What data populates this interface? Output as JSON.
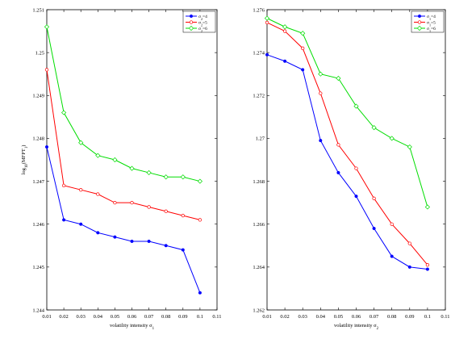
{
  "chart_data": [
    {
      "type": "line",
      "title": "",
      "xlabel": "volatility intensity σ",
      "xlabel_sub": "1",
      "ylabel": "log",
      "ylabel_sub": "10",
      "ylabel_tail": "(MFPT",
      "ylabel_tail_sub": "1",
      "ylabel_end": ")",
      "xlim": [
        0.01,
        0.11
      ],
      "ylim": [
        1.244,
        1.251
      ],
      "xticks": [
        "0.01",
        "0.02",
        "0.03",
        "0.04",
        "0.05",
        "0.06",
        "0.07",
        "0.08",
        "0.09",
        "0.1",
        "0.11"
      ],
      "yticks": [
        "1.244",
        "1.245",
        "1.246",
        "1.247",
        "1.248",
        "1.249",
        "1.25",
        "1.251"
      ],
      "x": [
        0.01,
        0.02,
        0.03,
        0.04,
        0.05,
        0.06,
        0.07,
        0.08,
        0.09,
        0.1
      ],
      "grid": false,
      "legend_position": "top-right",
      "series": [
        {
          "name": "σ",
          "name_sub": "2",
          "name_tail": "=4",
          "color": "#0000ff",
          "marker": "dot",
          "values": [
            1.2478,
            1.2461,
            1.246,
            1.2458,
            1.2457,
            1.2456,
            1.2456,
            1.2455,
            1.2454,
            1.2444
          ]
        },
        {
          "name": "σ",
          "name_sub": "2",
          "name_tail": "=5",
          "color": "#ff0000",
          "marker": "circle",
          "values": [
            1.2496,
            1.2469,
            1.2468,
            1.2467,
            1.2465,
            1.2465,
            1.2464,
            1.2463,
            1.2462,
            1.2461
          ]
        },
        {
          "name": "σ",
          "name_sub": "2",
          "name_tail": "=6",
          "color": "#00dd00",
          "marker": "diamond",
          "values": [
            1.2506,
            1.2486,
            1.2479,
            1.2476,
            1.2475,
            1.2473,
            1.2472,
            1.2471,
            1.2471,
            1.247
          ]
        }
      ]
    },
    {
      "type": "line",
      "title": "",
      "xlabel": "volatility intensity σ",
      "xlabel_sub": "2",
      "ylabel": "",
      "xlim": [
        0.01,
        0.11
      ],
      "ylim": [
        1.262,
        1.276
      ],
      "xticks": [
        "0.01",
        "0.02",
        "0.03",
        "0.04",
        "0.05",
        "0.06",
        "0.07",
        "0.08",
        "0.09",
        "0.1",
        "0.11"
      ],
      "yticks": [
        "1.262",
        "1.264",
        "1.266",
        "1.268",
        "1.27",
        "1.272",
        "1.274",
        "1.276"
      ],
      "x": [
        0.01,
        0.02,
        0.03,
        0.04,
        0.05,
        0.06,
        0.07,
        0.08,
        0.09,
        0.1
      ],
      "grid": false,
      "legend_position": "top-right",
      "series": [
        {
          "name": "σ",
          "name_sub": "1",
          "name_tail": "=4",
          "color": "#0000ff",
          "marker": "dot",
          "values": [
            1.2739,
            1.2736,
            1.2732,
            1.2699,
            1.2684,
            1.2673,
            1.2658,
            1.2645,
            1.264,
            1.2639
          ]
        },
        {
          "name": "σ",
          "name_sub": "1",
          "name_tail": "=5",
          "color": "#ff0000",
          "marker": "circle",
          "values": [
            1.2754,
            1.275,
            1.2742,
            1.2721,
            1.2697,
            1.2686,
            1.2672,
            1.266,
            1.2651,
            1.2641
          ]
        },
        {
          "name": "σ",
          "name_sub": "1",
          "name_tail": "=6",
          "color": "#00dd00",
          "marker": "diamond",
          "values": [
            1.2756,
            1.2752,
            1.2749,
            1.273,
            1.2728,
            1.2715,
            1.2705,
            1.27,
            1.2696,
            1.2668
          ]
        }
      ]
    }
  ]
}
